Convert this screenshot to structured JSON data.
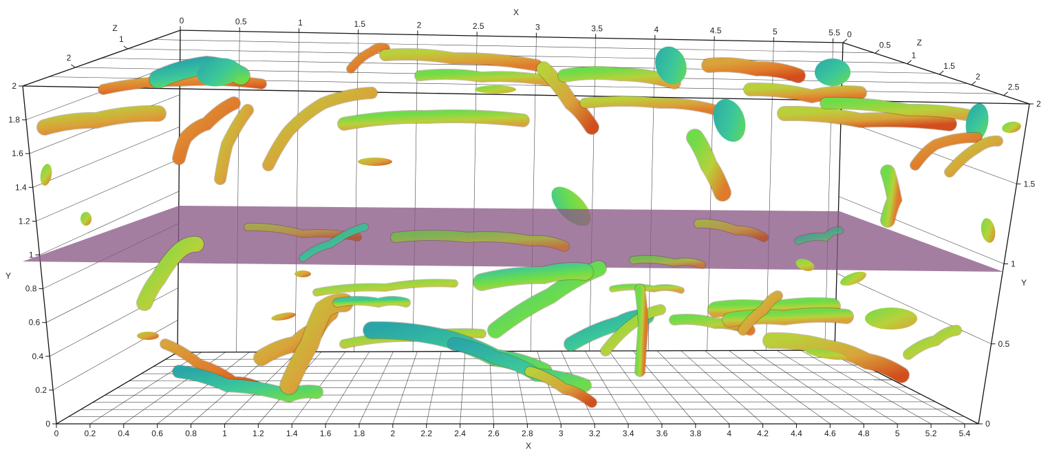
{
  "viewer": {
    "background": "#ffffff",
    "plane_color": "#8a5a87",
    "structure_palette": [
      "#2aa6a8",
      "#3cc79a",
      "#6edc4a",
      "#b8d13a",
      "#d9a33a",
      "#e07a2c",
      "#d24e1e"
    ]
  },
  "axes": {
    "x_top_title": "X",
    "x_bottom_title": "X",
    "y_title": "Y",
    "z_left_title": "Z",
    "z_right_title": "Z",
    "x_top_ticks": [
      "0",
      "0.5",
      "1",
      "1.5",
      "2",
      "2.5",
      "3",
      "3.5",
      "4",
      "4.5",
      "5",
      "5.5"
    ],
    "x_bottom_ticks": [
      "0",
      "0.2",
      "0.4",
      "0.6",
      "0.8",
      "1",
      "1.2",
      "1.4",
      "1.6",
      "1.8",
      "2",
      "2.2",
      "2.4",
      "2.6",
      "2.8",
      "3",
      "3.2",
      "3.4",
      "3.6",
      "3.8",
      "4",
      "4.2",
      "4.4",
      "4.6",
      "4.8",
      "5",
      "5.2",
      "5.4"
    ],
    "y_left_ticks": [
      "0",
      "0.2",
      "0.4",
      "0.6",
      "0.8",
      "1",
      "1.2",
      "1.4",
      "1.6",
      "1.8",
      "2"
    ],
    "y_right_ticks": [
      "0",
      "0.5",
      "1",
      "1.5",
      "2"
    ],
    "z_left_ticks": [
      "1",
      "2"
    ],
    "z_right_ticks": [
      "0",
      "0.5",
      "1",
      "1.5",
      "2",
      "2.5"
    ]
  }
}
